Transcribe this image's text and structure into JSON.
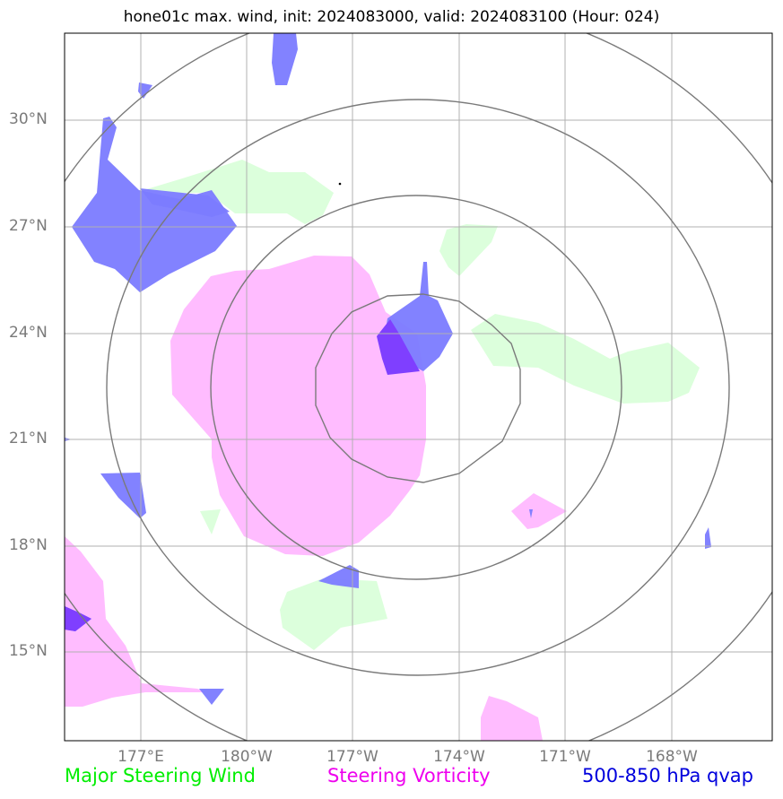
{
  "title": "hone01c max. wind, init: 2024083000, valid: 2024083100 (Hour: 024)",
  "axes": {
    "lat_labels": [
      "30°N",
      "27°N",
      "24°N",
      "21°N",
      "18°N",
      "15°N"
    ],
    "lon_labels": [
      "177°E",
      "180°W",
      "177°W",
      "174°W",
      "171°W",
      "168°W"
    ]
  },
  "legend": {
    "wind": {
      "label": "Major Steering Wind",
      "color": "#00ee00"
    },
    "vorticity": {
      "label": "Steering Vorticity",
      "color": "#ee00ee"
    },
    "qvap": {
      "label": "500-850 hPa qvap",
      "color": "#0000dd"
    }
  },
  "colors": {
    "wind_fill": "#dcffdc",
    "vort_fill": "#ffbcff",
    "qvap_fill": "#7b7bff",
    "overlap_fill": "#7f3fff",
    "ring": "#7a7a7a",
    "grid": "#b0b0b0"
  }
}
